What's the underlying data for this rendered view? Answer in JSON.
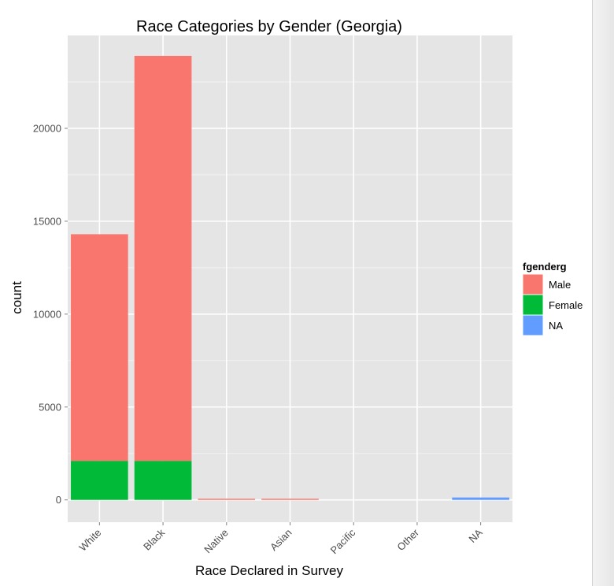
{
  "chart_data": {
    "type": "bar",
    "stacked": true,
    "title": "Race Categories by Gender (Georgia)",
    "xlabel": "Race Declared in Survey",
    "ylabel": "count",
    "categories": [
      "White",
      "Black",
      "Native",
      "Asian",
      "Pacific",
      "Other",
      "NA"
    ],
    "series": [
      {
        "name": "Male",
        "color": "#F8766D",
        "values": [
          12200,
          21800,
          60,
          40,
          0,
          0,
          0
        ]
      },
      {
        "name": "Female",
        "color": "#00BA38",
        "values": [
          2100,
          2100,
          0,
          0,
          0,
          0,
          0
        ]
      },
      {
        "name": "NA",
        "color": "#619CFF",
        "values": [
          0,
          0,
          0,
          0,
          0,
          0,
          130
        ]
      }
    ],
    "yticks": [
      0,
      5000,
      10000,
      15000,
      20000
    ],
    "ylim": [
      -1200,
      25000
    ],
    "grid": true,
    "legend": {
      "title": "fgenderg",
      "placement": "right"
    }
  }
}
